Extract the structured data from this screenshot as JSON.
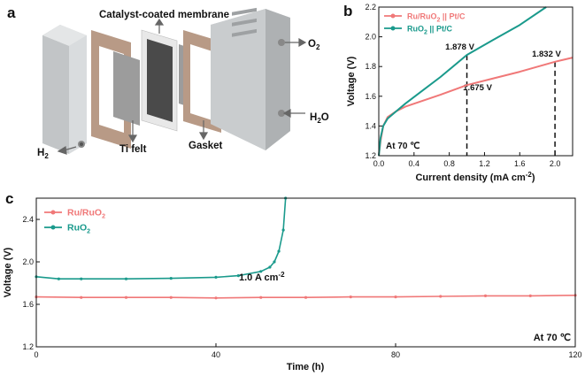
{
  "panel_a": {
    "letter": "a",
    "labels": {
      "ccm": "Catalyst-coated membrane",
      "o2": "O",
      "o2_sub": "2",
      "h2o_h": "H",
      "h2o_sub": "2",
      "h2o_o": "O",
      "h2_h": "H",
      "h2_sub": "2",
      "ti_felt": "Ti felt",
      "gasket": "Gasket"
    },
    "colors": {
      "metal": "#c9ccce",
      "gasket": "#b89a86",
      "felt": "#9c9c9c",
      "membrane": "#4a4a4a"
    }
  },
  "chart_data": [
    {
      "panel": "b",
      "type": "line",
      "title": "",
      "xlabel": "Current density (mA cm",
      "xlabel_sup": "-2",
      "xlabel_close": ")",
      "ylabel": "Voltage (V)",
      "xlim": [
        0,
        2.2
      ],
      "ylim": [
        1.2,
        2.2
      ],
      "xticks": [
        "0.0",
        "0.4",
        "0.8",
        "1.2",
        "1.6",
        "2.0"
      ],
      "yticks": [
        "1.2",
        "1.4",
        "1.6",
        "1.8",
        "2.0",
        "2.2"
      ],
      "legend_position": "top-left",
      "annotation": "At 70 ℃",
      "series": [
        {
          "name": "Ru/RuO",
          "name_sub": "2",
          "name_rest": " || Pt/C",
          "color": "#f07878",
          "x": [
            0.0,
            0.02,
            0.05,
            0.1,
            0.2,
            0.3,
            0.5,
            0.7,
            1.0,
            1.3,
            1.6,
            2.0,
            2.2
          ],
          "y": [
            1.2,
            1.3,
            1.4,
            1.46,
            1.5,
            1.53,
            1.57,
            1.61,
            1.675,
            1.72,
            1.765,
            1.832,
            1.86
          ]
        },
        {
          "name": "RuO",
          "name_sub": "2",
          "name_rest": " || Pt/C",
          "color": "#1a9a8c",
          "x": [
            0.0,
            0.02,
            0.05,
            0.1,
            0.2,
            0.3,
            0.5,
            0.7,
            1.0,
            1.3,
            1.6,
            1.9
          ],
          "y": [
            1.2,
            1.32,
            1.4,
            1.45,
            1.5,
            1.55,
            1.64,
            1.73,
            1.878,
            1.98,
            2.08,
            2.2
          ]
        }
      ],
      "markers": [
        {
          "x": 1.0,
          "label": "1.878 V",
          "label_color": "#1a9a8c",
          "y": 1.878
        },
        {
          "x": 1.0,
          "label": "1.675 V",
          "label_color": "#f07878",
          "y": 1.675
        },
        {
          "x": 2.0,
          "label": "1.832 V",
          "label_color": "#f07878",
          "y": 1.832
        }
      ]
    },
    {
      "panel": "c",
      "type": "line",
      "title": "",
      "xlabel": "Time (h)",
      "ylabel": "Voltage (V)",
      "xlim": [
        0,
        120
      ],
      "ylim": [
        1.2,
        2.6
      ],
      "xticks": [
        "0",
        "40",
        "80",
        "120"
      ],
      "yticks": [
        "1.2",
        "1.6",
        "2.0",
        "2.4"
      ],
      "legend_position": "top-left",
      "annotation": "At 70 ℃",
      "annotation2": "1.0 A cm",
      "annotation2_sup": "-2",
      "series": [
        {
          "name": "Ru/RuO",
          "name_sub": "2",
          "color": "#f07878",
          "x": [
            0,
            10,
            20,
            30,
            40,
            50,
            60,
            70,
            80,
            90,
            100,
            110,
            120
          ],
          "y": [
            1.67,
            1.665,
            1.665,
            1.665,
            1.66,
            1.665,
            1.665,
            1.67,
            1.67,
            1.675,
            1.68,
            1.68,
            1.685
          ]
        },
        {
          "name": "RuO",
          "name_sub": "2",
          "color": "#1a9a8c",
          "x": [
            0,
            5,
            10,
            20,
            30,
            40,
            45,
            50,
            52,
            53,
            54,
            55,
            55.5
          ],
          "y": [
            1.86,
            1.84,
            1.84,
            1.84,
            1.845,
            1.855,
            1.87,
            1.91,
            1.95,
            2.0,
            2.1,
            2.3,
            2.6
          ]
        }
      ]
    }
  ]
}
